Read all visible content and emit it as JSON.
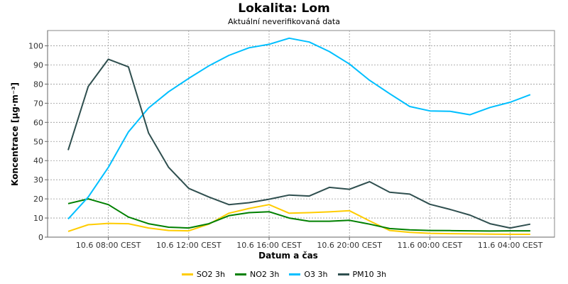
{
  "title": "Lokalita: Lom",
  "subtitle": "Aktuální neverifikovaná data",
  "colors": {
    "SO2": "#ffcc00",
    "NO2": "#008000",
    "O3": "#00bfff",
    "PM10": "#2f4f4f"
  },
  "chart_data": {
    "type": "line",
    "xlabel": "Datum a čas",
    "ylabel": "Koncentrace [µg·m⁻³]",
    "ylim": [
      0,
      108
    ],
    "yticks": [
      0,
      10,
      20,
      30,
      40,
      50,
      60,
      70,
      80,
      90,
      100
    ],
    "x": [
      "10.6 06:00",
      "10.6 07:00",
      "10.6 08:00",
      "10.6 09:00",
      "10.6 10:00",
      "10.6 11:00",
      "10.6 12:00",
      "10.6 13:00",
      "10.6 14:00",
      "10.6 15:00",
      "10.6 16:00",
      "10.6 17:00",
      "10.6 18:00",
      "10.6 19:00",
      "10.6 20:00",
      "10.6 21:00",
      "10.6 22:00",
      "10.6 23:00",
      "11.6 00:00",
      "11.6 01:00",
      "11.6 02:00",
      "11.6 03:00",
      "11.6 04:00",
      "11.6 05:00"
    ],
    "xticks": [
      {
        "label": "10.6 08:00 CEST",
        "index": 2
      },
      {
        "label": "10.6 12:00 CEST",
        "index": 6
      },
      {
        "label": "10.6 16:00 CEST",
        "index": 10
      },
      {
        "label": "10.6 20:00 CEST",
        "index": 14
      },
      {
        "label": "11.6 00:00 CEST",
        "index": 18
      },
      {
        "label": "11.6 04:00 CEST",
        "index": 22
      }
    ],
    "grid": true,
    "legend_position": "bottom",
    "series": [
      {
        "name": "SO2 3h",
        "key": "SO2",
        "values": [
          3,
          6.5,
          7.2,
          7,
          4.8,
          3.5,
          3.3,
          6.8,
          12.5,
          15,
          17,
          12.5,
          12.8,
          13.2,
          13.8,
          8.5,
          3.5,
          2.5,
          2,
          1.8,
          1.7,
          1.6,
          1.5,
          1.5
        ]
      },
      {
        "name": "NO2 3h",
        "key": "NO2",
        "values": [
          17.5,
          20,
          17,
          10.5,
          7,
          5.2,
          4.8,
          7,
          11.2,
          12.8,
          13.3,
          10,
          8.3,
          8.3,
          8.8,
          6.8,
          4.5,
          3.8,
          3.5,
          3.4,
          3.3,
          3.2,
          3.3,
          3.3
        ]
      },
      {
        "name": "O3 3h",
        "key": "O3",
        "values": [
          9.5,
          21,
          36.5,
          55,
          67.5,
          76,
          83,
          89.5,
          95,
          99,
          100.8,
          104,
          102,
          97,
          90.5,
          82,
          75,
          68.3,
          66,
          65.8,
          64,
          67.8,
          70.5,
          74.5
        ]
      },
      {
        "name": "PM10 3h",
        "key": "PM10",
        "values": [
          45.5,
          78.8,
          93,
          89,
          54.5,
          36.5,
          25.5,
          21,
          17,
          18,
          19.8,
          22,
          21.5,
          26,
          25,
          29,
          23.5,
          22.5,
          17.2,
          14.5,
          11.5,
          7,
          4.8,
          6.8
        ]
      }
    ]
  }
}
